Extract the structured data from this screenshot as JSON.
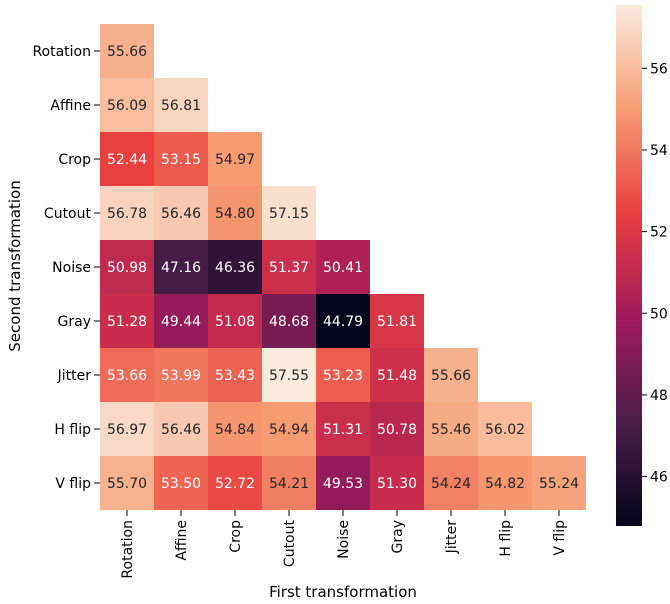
{
  "chart_data": {
    "type": "heatmap",
    "title": "",
    "xlabel": "First transformation",
    "ylabel": "Second transformation",
    "x_categories": [
      "Rotation",
      "Affine",
      "Crop",
      "Cutout",
      "Noise",
      "Gray",
      "Jitter",
      "H flip",
      "V flip"
    ],
    "y_categories": [
      "Rotation",
      "Affine",
      "Crop",
      "Cutout",
      "Noise",
      "Gray",
      "Jitter",
      "H flip",
      "V flip"
    ],
    "values": [
      [
        55.66,
        null,
        null,
        null,
        null,
        null,
        null,
        null,
        null
      ],
      [
        56.09,
        56.81,
        null,
        null,
        null,
        null,
        null,
        null,
        null
      ],
      [
        52.44,
        53.15,
        54.97,
        null,
        null,
        null,
        null,
        null,
        null
      ],
      [
        56.78,
        56.46,
        54.8,
        57.15,
        null,
        null,
        null,
        null,
        null
      ],
      [
        50.98,
        47.16,
        46.36,
        51.37,
        50.41,
        null,
        null,
        null,
        null
      ],
      [
        51.28,
        49.44,
        51.08,
        48.68,
        44.79,
        51.81,
        null,
        null,
        null
      ],
      [
        53.66,
        53.99,
        53.43,
        57.55,
        53.23,
        51.48,
        55.66,
        null,
        null
      ],
      [
        56.97,
        56.46,
        54.84,
        54.94,
        51.31,
        50.78,
        55.46,
        56.02,
        null
      ],
      [
        55.7,
        53.5,
        52.72,
        54.21,
        49.53,
        51.3,
        54.24,
        54.82,
        55.24
      ]
    ],
    "cell_labels": [
      [
        "55.66",
        null,
        null,
        null,
        null,
        null,
        null,
        null,
        null
      ],
      [
        "56.09",
        "56.81",
        null,
        null,
        null,
        null,
        null,
        null,
        null
      ],
      [
        "52.44",
        "53.15",
        "54.97",
        null,
        null,
        null,
        null,
        null,
        null
      ],
      [
        "56.78",
        "56.46",
        "54.80",
        "57.15",
        null,
        null,
        null,
        null,
        null
      ],
      [
        "50.98",
        "47.16",
        "46.36",
        "51.37",
        "50.41",
        null,
        null,
        null,
        null
      ],
      [
        "51.28",
        "49.44",
        "51.08",
        "48.68",
        "44.79",
        "51.81",
        null,
        null,
        null
      ],
      [
        "53.66",
        "53.99",
        "53.43",
        "57.55",
        "53.23",
        "51.48",
        "55.66",
        null,
        null
      ],
      [
        "56.97",
        "56.46",
        "54.84",
        "54.94",
        "51.31",
        "50.78",
        "55.46",
        "56.02",
        null
      ],
      [
        "55.70",
        "53.50",
        "52.72",
        "54.21",
        "49.53",
        "51.30",
        "54.24",
        "54.82",
        "55.24"
      ]
    ],
    "colorbar": {
      "min": 44.79,
      "max": 57.55,
      "ticks": [
        46,
        48,
        50,
        52,
        54,
        56
      ],
      "tick_labels": [
        "46",
        "48",
        "50",
        "52",
        "54",
        "56"
      ],
      "colormap": "rocket",
      "color_stops": [
        "#03051a",
        "#4c1d4b",
        "#a11a5b",
        "#e83f3f",
        "#f69c73",
        "#faebdd"
      ]
    },
    "mask": "upper-triangle",
    "grid": false
  }
}
